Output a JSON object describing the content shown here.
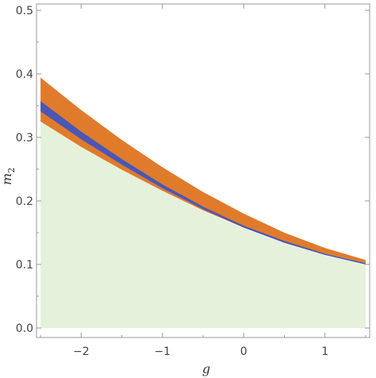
{
  "chart_data": {
    "type": "area",
    "xlabel": "g",
    "ylabel_main": "m",
    "ylabel_sub": "2",
    "xlim": [
      -2.55,
      1.55
    ],
    "ylim": [
      -0.015,
      0.51
    ],
    "x_ticks": [
      -2,
      -1,
      0,
      1
    ],
    "x_tick_labels": [
      "−2",
      "−1",
      "0",
      "1"
    ],
    "y_ticks": [
      0.0,
      0.1,
      0.2,
      0.3,
      0.4,
      0.5
    ],
    "y_tick_labels": [
      "0.0",
      "0.1",
      "0.2",
      "0.3",
      "0.4",
      "0.5"
    ],
    "grid": false,
    "legend": "none",
    "series": [
      {
        "kind": "fill_to_zero",
        "color": "#e6f1dc",
        "x": [
          -2.5,
          -2.0,
          -1.5,
          -1.0,
          -0.5,
          0.0,
          0.5,
          1.0,
          1.5
        ],
        "y": [
          0.325,
          0.285,
          0.249,
          0.216,
          0.184,
          0.157,
          0.134,
          0.116,
          0.101
        ]
      },
      {
        "kind": "band",
        "color": "#e07b2c",
        "x": [
          -2.5,
          -2.0,
          -1.5,
          -1.0,
          -0.5,
          0.0,
          0.5,
          1.0,
          1.5
        ],
        "lower": [
          0.325,
          0.285,
          0.249,
          0.216,
          0.185,
          0.158,
          0.135,
          0.117,
          0.102
        ],
        "upper": [
          0.394,
          0.343,
          0.296,
          0.253,
          0.214,
          0.18,
          0.15,
          0.126,
          0.107
        ]
      },
      {
        "kind": "band",
        "color": "#4a57b7",
        "x": [
          -2.5,
          -2.0,
          -1.5,
          -1.0,
          -0.5,
          0.0,
          0.5,
          1.0,
          1.5
        ],
        "lower": [
          0.341,
          0.297,
          0.257,
          0.22,
          0.187,
          0.158,
          0.134,
          0.115,
          0.1
        ],
        "upper": [
          0.357,
          0.309,
          0.266,
          0.226,
          0.191,
          0.161,
          0.137,
          0.117,
          0.102
        ]
      }
    ]
  }
}
